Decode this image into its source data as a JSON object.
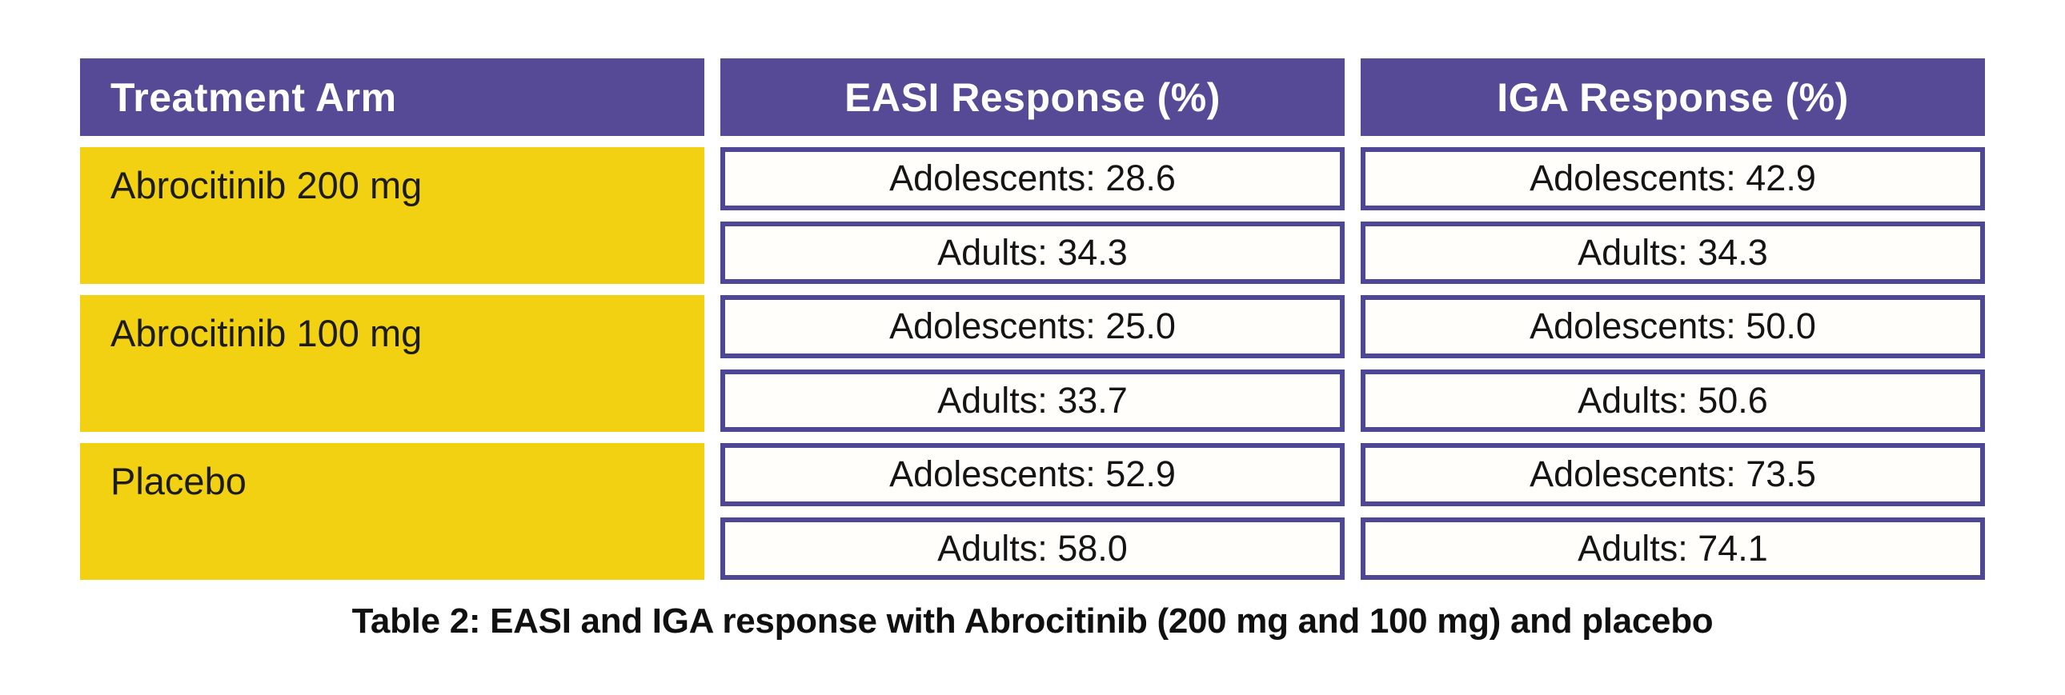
{
  "figure": {
    "caption": "Table 2: EASI and IGA response with Abrocitinib (200 mg and 100 mg) and placebo"
  },
  "colors": {
    "header_background": "#564A96",
    "header_text": "#FFFFFF",
    "treatment_arm_background": "#F2D112",
    "cell_border": "#4E4795",
    "cell_background": "#FFFEFB",
    "body_text": "#141414"
  },
  "chart_data": {
    "type": "table",
    "title": "Table 2: EASI and IGA response with Abrocitinib (200 mg and 100 mg) and placebo",
    "columns": [
      "Treatment Arm",
      "EASI Response (%)",
      "IGA Response (%)"
    ],
    "rows": [
      {
        "arm": "Abrocitinib 200 mg",
        "easi_response_pct": {
          "adolescents": 28.6,
          "adults": 34.3
        },
        "iga_response_pct": {
          "adolescents": 42.9,
          "adults": 34.3
        },
        "cells": {
          "easi_adolescents": "Adolescents: 28.6",
          "easi_adults": "Adults: 34.3",
          "iga_adolescents": "Adolescents: 42.9",
          "iga_adults": "Adults: 34.3"
        }
      },
      {
        "arm": "Abrocitinib 100 mg",
        "easi_response_pct": {
          "adolescents": 25.0,
          "adults": 33.7
        },
        "iga_response_pct": {
          "adolescents": 50.0,
          "adults": 50.6
        },
        "cells": {
          "easi_adolescents": "Adolescents: 25.0",
          "easi_adults": "Adults: 33.7",
          "iga_adolescents": "Adolescents: 50.0",
          "iga_adults": "Adults: 50.6"
        }
      },
      {
        "arm": "Placebo",
        "easi_response_pct": {
          "adolescents": 52.9,
          "adults": 58.0
        },
        "iga_response_pct": {
          "adolescents": 73.5,
          "adults": 74.1
        },
        "cells": {
          "easi_adolescents": "Adolescents: 52.9",
          "easi_adults": "Adults: 58.0",
          "iga_adolescents": "Adolescents: 73.5",
          "iga_adults": "Adults: 74.1"
        }
      }
    ]
  }
}
